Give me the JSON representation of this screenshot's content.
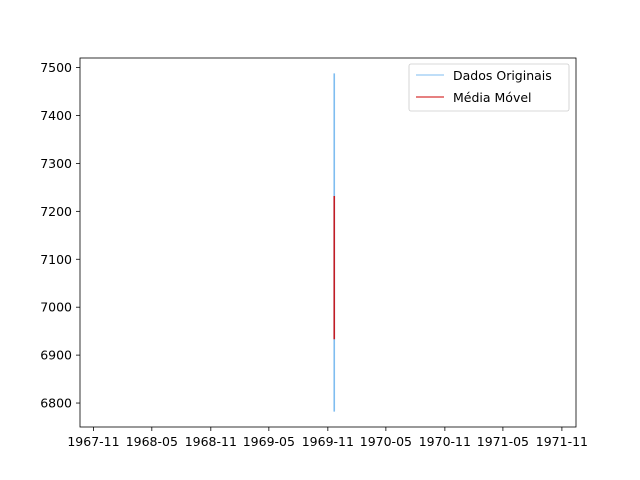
{
  "chart_data": {
    "type": "line",
    "title": "",
    "xlabel": "",
    "ylabel": "",
    "x_axis_type": "date",
    "xlim": [
      "1967-09-20",
      "1971-12-15"
    ],
    "ylim": [
      6750,
      7520
    ],
    "x_ticks": [
      "1967-11",
      "1968-05",
      "1968-11",
      "1969-05",
      "1969-11",
      "1970-05",
      "1970-11",
      "1971-05",
      "1971-11"
    ],
    "y_ticks": [
      6800,
      6900,
      7000,
      7100,
      7200,
      7300,
      7400,
      7500
    ],
    "grid": false,
    "legend_position": "top-right",
    "series": [
      {
        "name": "Dados Originais",
        "color": "#7fbdf0",
        "x": [
          "1969-11-21",
          "1969-11-21"
        ],
        "y": [
          6782,
          7488
        ]
      },
      {
        "name": "Média Móvel",
        "color": "#cc0000",
        "x": [
          "1969-11-21",
          "1969-11-21"
        ],
        "y": [
          6933,
          7232
        ]
      }
    ]
  }
}
